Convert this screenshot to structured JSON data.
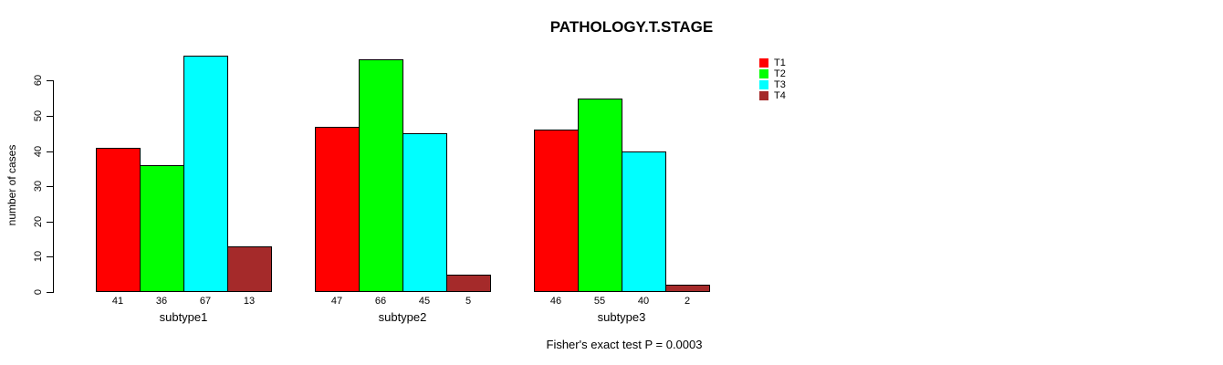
{
  "chart_data": {
    "type": "bar",
    "title": "PATHOLOGY.T.STAGE",
    "footnote": "Fisher's exact test P = 0.0003",
    "ylabel": "number of cases",
    "xlabel": "",
    "categories": [
      "subtype1",
      "subtype2",
      "subtype3"
    ],
    "series": [
      {
        "name": "T1",
        "color": "#ff0000",
        "values": [
          41,
          47,
          46
        ]
      },
      {
        "name": "T2",
        "color": "#00ff00",
        "values": [
          36,
          66,
          55
        ]
      },
      {
        "name": "T3",
        "color": "#00ffff",
        "values": [
          67,
          45,
          40
        ]
      },
      {
        "name": "T4",
        "color": "#a52a2a",
        "values": [
          13,
          5,
          2
        ]
      }
    ],
    "yticks": [
      0,
      10,
      20,
      30,
      40,
      50,
      60
    ],
    "ylim": [
      0,
      67
    ],
    "bar_value_labels_shown": true,
    "legend_position": "top-right",
    "grid": false,
    "background_color": "#ffffff",
    "bar_border_color": "#000000"
  }
}
